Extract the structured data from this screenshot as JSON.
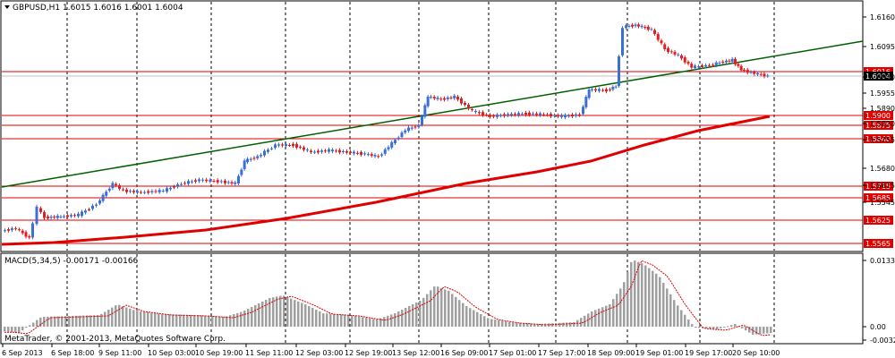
{
  "header": {
    "title": "GBPUSD,H1  1.6015 1.6016 1.6001 1.6004"
  },
  "macd": {
    "label": "MACD(5,34,5) -0.00171 -0.00166"
  },
  "footer": {
    "copyright": "MetaTrader, © 2001-2013, MetaQuotes Software Corp."
  },
  "price_axis": {
    "ticks": [
      "1.6160",
      "1.6095",
      "1.6030",
      "1.5955",
      "1.5890",
      "1.5820",
      "1.5755",
      "1.5680",
      "1.5615",
      "1.5545"
    ]
  },
  "macd_axis": {
    "ticks": [
      "0.0133",
      "0.00",
      "-0.0032"
    ]
  },
  "price_lines": [
    {
      "label": "1.6016"
    },
    {
      "label": "1.5900"
    },
    {
      "label": "1.5875"
    },
    {
      "label": "1.5840"
    },
    {
      "label": "1.5715"
    },
    {
      "label": "1.5685"
    },
    {
      "label": "1.5625"
    },
    {
      "label": "1.5565"
    }
  ],
  "current_price": "1.6004",
  "time_labels": [
    "6 Sep 2013",
    "6 Sep 18:00",
    "9 Sep 11:00",
    "10 Sep 03:00",
    "10 Sep 19:00",
    "11 Sep 11:00",
    "12 Sep 03:00",
    "12 Sep 19:00",
    "13 Sep 12:00",
    "16 Sep 09:00",
    "17 Sep 01:00",
    "17 Sep 17:00",
    "18 Sep 09:00",
    "19 Sep 01:00",
    "19 Sep 17:00",
    "20 Sep 10:00"
  ],
  "colors": {
    "bull": "#3b6fd8",
    "bear": "#e02020",
    "ma": "#e00000",
    "trend": "#006000",
    "level": "#e00000",
    "macd_signal": "#e00000",
    "macd_bar": "#a0a0a0",
    "grid": "#000000"
  },
  "chart_data": {
    "type": "candlestick",
    "symbol": "GBPUSD",
    "timeframe": "H1",
    "ohlc": [
      [
        1.6015,
        1.6016,
        1.6001,
        1.6004
      ]
    ],
    "levels": [
      1.6016,
      1.59,
      1.5875,
      1.584,
      1.5715,
      1.5685,
      1.5625,
      1.5565
    ],
    "price_range": [
      1.5545,
      1.6185
    ],
    "macd": {
      "params": "5,34,5",
      "main": -0.00171,
      "signal": -0.00166,
      "range": [
        -0.0032,
        0.0133
      ]
    }
  }
}
